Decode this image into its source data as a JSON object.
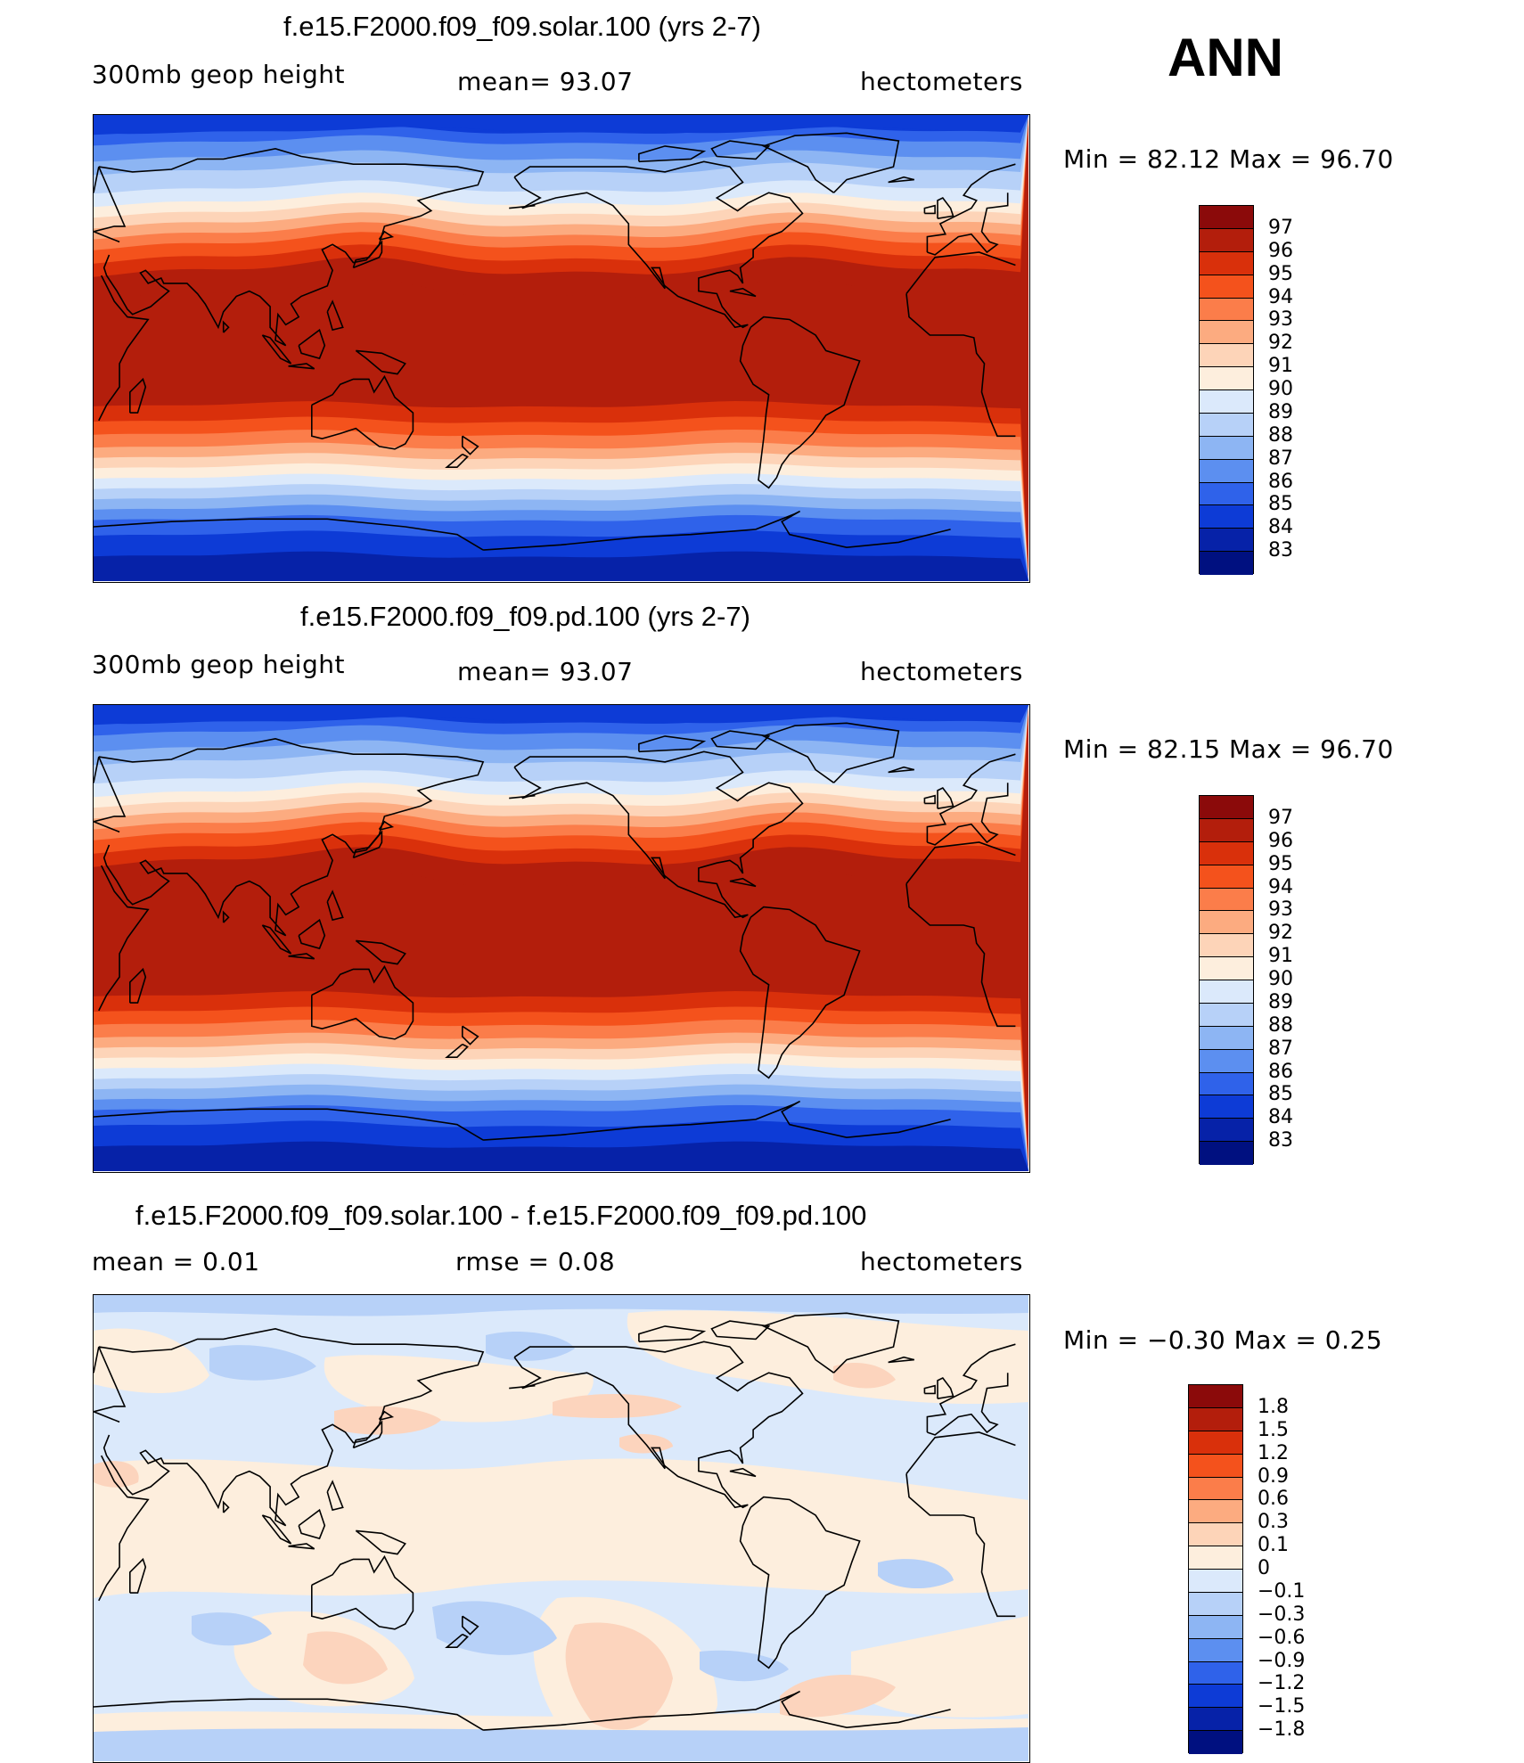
{
  "season": "ANN",
  "panels": [
    {
      "title": "f.e15.F2000.f09_f09.solar.100 (yrs 2-7)",
      "left": "300mb geop height",
      "center": "mean=  93.07",
      "right": "hectometers",
      "minmax": "Min =   82.12 Max =   96.70",
      "kind": "field"
    },
    {
      "title": "f.e15.F2000.f09_f09.pd.100 (yrs 2-7)",
      "left": "300mb geop height",
      "center": "mean=  93.07",
      "right": "hectometers",
      "minmax": "Min =   82.15 Max =   96.70",
      "kind": "field"
    },
    {
      "title": "f.e15.F2000.f09_f09.solar.100 - f.e15.F2000.f09_f09.pd.100",
      "left": "mean =    0.01",
      "center": "rmse =    0.08",
      "right": "hectometers",
      "minmax": "Min =  −0.30 Max =    0.25",
      "kind": "diff"
    }
  ],
  "field_colorbar": {
    "labels": [
      "97",
      "96",
      "95",
      "94",
      "93",
      "92",
      "91",
      "90",
      "89",
      "88",
      "87",
      "86",
      "85",
      "84",
      "83"
    ],
    "colors": [
      "#8b0a0a",
      "#b31e0c",
      "#d9300b",
      "#f4521c",
      "#fb7d4a",
      "#fcab80",
      "#fdd4b8",
      "#fdeedd",
      "#dbe9fb",
      "#b7d1f8",
      "#8db5f3",
      "#5c8ff0",
      "#2f62ea",
      "#0d3bd6",
      "#0622a8",
      "#001080"
    ]
  },
  "diff_colorbar": {
    "labels": [
      "1.8",
      "1.5",
      "1.2",
      "0.9",
      "0.6",
      "0.3",
      "0.1",
      "0",
      "−0.1",
      "−0.3",
      "−0.6",
      "−0.9",
      "−1.2",
      "−1.5",
      "−1.8"
    ],
    "colors": [
      "#8b0a0a",
      "#b31e0c",
      "#d9300b",
      "#f4521c",
      "#fb7d4a",
      "#fcab80",
      "#fdd4b8",
      "#fdeedd",
      "#dbe9fb",
      "#b7d1f8",
      "#8db5f3",
      "#5c8ff0",
      "#2f62ea",
      "#0d3bd6",
      "#0622a8",
      "#001080"
    ]
  }
}
